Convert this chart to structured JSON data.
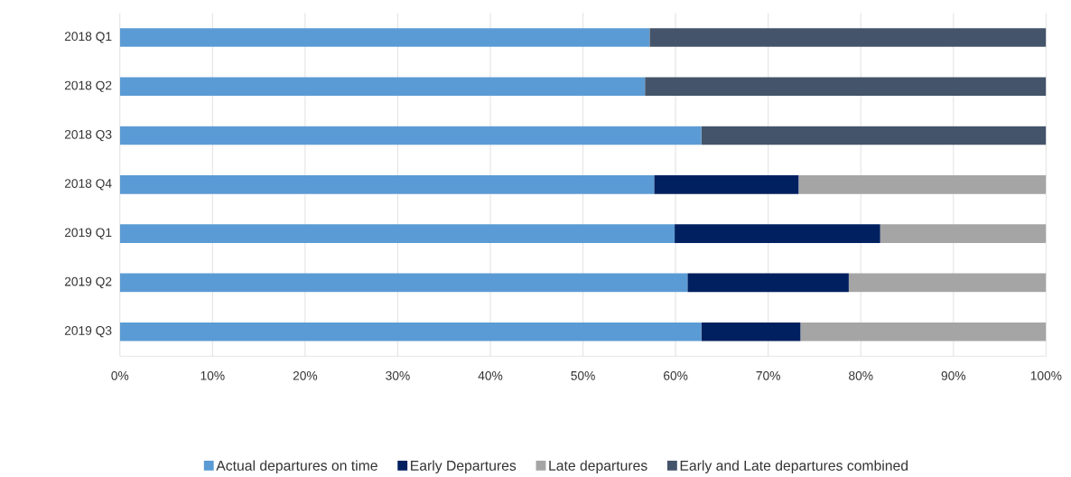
{
  "chart_data": {
    "type": "bar",
    "orientation": "horizontal",
    "stacked": true,
    "categories": [
      "2018 Q1",
      "2018 Q2",
      "2018 Q3",
      "2018 Q4",
      "2019 Q1",
      "2019 Q2",
      "2019 Q3"
    ],
    "series": [
      {
        "name": "Actual departures on time",
        "color": "#5b9bd5",
        "values": [
          57.2,
          56.7,
          62.8,
          57.7,
          59.9,
          61.3,
          62.8
        ]
      },
      {
        "name": "Early Departures",
        "color": "#002060",
        "values": [
          null,
          null,
          null,
          15.6,
          22.2,
          17.4,
          10.7
        ]
      },
      {
        "name": "Late departures",
        "color": "#a5a5a5",
        "values": [
          null,
          null,
          null,
          26.7,
          17.9,
          21.3,
          26.5
        ]
      },
      {
        "name": "Early and Late departures combined",
        "color": "#44546a",
        "values": [
          42.8,
          43.3,
          37.2,
          null,
          null,
          null,
          null
        ]
      }
    ],
    "xlim": [
      0,
      100
    ],
    "xticks": [
      {
        "value": 0,
        "label": "0%"
      },
      {
        "value": 10,
        "label": "10%"
      },
      {
        "value": 20,
        "label": "20%"
      },
      {
        "value": 30,
        "label": "30%"
      },
      {
        "value": 40,
        "label": "40%"
      },
      {
        "value": 50,
        "label": "50%"
      },
      {
        "value": 60,
        "label": "60%"
      },
      {
        "value": 70,
        "label": "70%"
      },
      {
        "value": 80,
        "label": "80%"
      },
      {
        "value": 90,
        "label": "90%"
      },
      {
        "value": 100,
        "label": "100%"
      }
    ],
    "grid": "x",
    "legend": "bottom"
  }
}
